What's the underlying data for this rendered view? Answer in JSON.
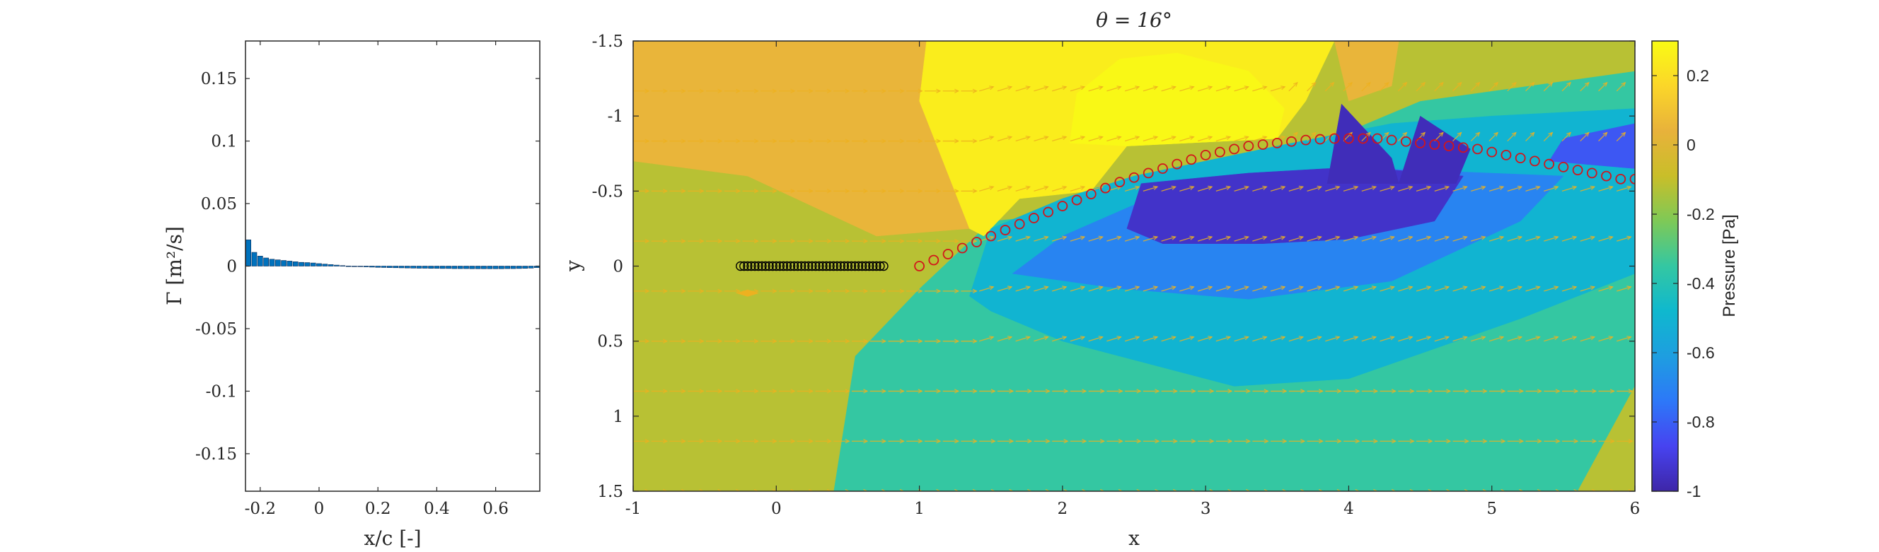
{
  "chart_data": [
    {
      "type": "bar",
      "xlabel": "x/c [-]",
      "ylabel": "Γ [m²/s]",
      "xlim": [
        -0.25,
        0.75
      ],
      "ylim": [
        -0.18,
        0.18
      ],
      "xticks": [
        "-0.2",
        "0",
        "0.2",
        "0.4",
        "0.6"
      ],
      "xtick_values": [
        -0.2,
        0,
        0.2,
        0.4,
        0.6
      ],
      "yticks": [
        "0.15",
        "0.1",
        "0.05",
        "0",
        "-0.05",
        "-0.1",
        "-0.15"
      ],
      "ytick_values": [
        0.15,
        0.1,
        0.05,
        0,
        -0.05,
        -0.1,
        -0.15
      ],
      "bar_color": "#0072BD",
      "x": [
        -0.24,
        -0.22,
        -0.2,
        -0.18,
        -0.16,
        -0.14,
        -0.12,
        -0.1,
        -0.08,
        -0.06,
        -0.04,
        -0.02,
        0,
        0.02,
        0.04,
        0.06,
        0.08,
        0.1,
        0.12,
        0.14,
        0.16,
        0.18,
        0.2,
        0.22,
        0.24,
        0.26,
        0.28,
        0.3,
        0.32,
        0.34,
        0.36,
        0.38,
        0.4,
        0.42,
        0.44,
        0.46,
        0.48,
        0.5,
        0.52,
        0.54,
        0.56,
        0.58,
        0.6,
        0.62,
        0.64,
        0.66,
        0.68,
        0.7,
        0.72,
        0.74
      ],
      "values": [
        0.021,
        0.011,
        0.008,
        0.0065,
        0.0055,
        0.005,
        0.0045,
        0.004,
        0.0035,
        0.003,
        0.0028,
        0.0025,
        0.002,
        0.0016,
        0.0012,
        0.0008,
        0.0004,
        0.0001,
        -0.0002,
        -0.0004,
        -0.0006,
        -0.0008,
        -0.001,
        -0.0011,
        -0.0012,
        -0.0013,
        -0.0014,
        -0.0015,
        -0.0016,
        -0.0017,
        -0.0017,
        -0.0018,
        -0.0018,
        -0.0019,
        -0.0019,
        -0.002,
        -0.002,
        -0.002,
        -0.0021,
        -0.0021,
        -0.0021,
        -0.0021,
        -0.0021,
        -0.0021,
        -0.002,
        -0.002,
        -0.0019,
        -0.0018,
        -0.0016,
        -0.0012
      ]
    },
    {
      "type": "heatmap",
      "title": "θ = 16°",
      "xlabel": "x",
      "ylabel": "y",
      "xlim": [
        -1,
        6
      ],
      "ylim": [
        -1.5,
        1.5
      ],
      "y_reversed": true,
      "xticks": [
        "-1",
        "0",
        "1",
        "2",
        "3",
        "4",
        "5",
        "6"
      ],
      "xtick_values": [
        -1,
        0,
        1,
        2,
        3,
        4,
        5,
        6
      ],
      "yticks": [
        "-1.5",
        "-1",
        "-0.5",
        "0",
        "0.5",
        "1",
        "1.5"
      ],
      "ytick_values": [
        -1.5,
        -1,
        -0.5,
        0,
        0.5,
        1,
        1.5
      ],
      "colorbar": {
        "label": "Pressure [Pa]",
        "range": [
          -1,
          0.3
        ],
        "ticks": [
          "0.2",
          "0",
          "-0.2",
          "-0.4",
          "-0.6",
          "-0.8",
          "-1"
        ],
        "tick_values": [
          0.2,
          0,
          -0.2,
          -0.4,
          -0.6,
          -0.8,
          -1
        ],
        "colormap": [
          "#3e26a8",
          "#4743f0",
          "#2d78f8",
          "#1e9ee0",
          "#0fb8ce",
          "#34c7a2",
          "#7ec957",
          "#c9be29",
          "#e8b23b",
          "#fbd629",
          "#f9fb14"
        ]
      },
      "pressure_regions": [
        {
          "level": -0.35,
          "polygon": [
            [
              -1,
              1.5
            ],
            [
              6,
              1.5
            ],
            [
              6,
              -1.5
            ],
            [
              -1,
              -1.5
            ]
          ]
        },
        {
          "level": -0.12,
          "polygon": [
            [
              -1,
              1.5
            ],
            [
              0.4,
              1.5
            ],
            [
              0.55,
              0.6
            ],
            [
              1.0,
              0.15
            ],
            [
              1.5,
              -0.3
            ],
            [
              2.5,
              -0.4
            ],
            [
              3.5,
              -0.7
            ],
            [
              4.5,
              -1.1
            ],
            [
              6,
              -1.3
            ],
            [
              6,
              -1.5
            ],
            [
              -1,
              -1.5
            ]
          ]
        },
        {
          "level": -0.12,
          "polygon": [
            [
              5.6,
              1.5
            ],
            [
              6,
              0.8
            ],
            [
              6,
              1.5
            ]
          ]
        },
        {
          "level": 0.05,
          "polygon": [
            [
              -1,
              -0.7
            ],
            [
              -0.2,
              -0.6
            ],
            [
              0.7,
              -0.2
            ],
            [
              1.35,
              -0.25
            ],
            [
              1.0,
              -1.1
            ],
            [
              1.05,
              -1.5
            ],
            [
              -1,
              -1.5
            ]
          ]
        },
        {
          "level": 0.05,
          "polygon": [
            [
              3.9,
              -1.5
            ],
            [
              4.35,
              -1.5
            ],
            [
              4.3,
              -1.2
            ],
            [
              4.0,
              -1.1
            ]
          ]
        },
        {
          "level": 0.25,
          "polygon": [
            [
              1.05,
              -1.5
            ],
            [
              3.9,
              -1.5
            ],
            [
              3.7,
              -1.1
            ],
            [
              3.5,
              -0.85
            ],
            [
              2.45,
              -0.8
            ],
            [
              2.2,
              -0.5
            ],
            [
              1.7,
              -0.45
            ],
            [
              1.45,
              -0.2
            ],
            [
              1.35,
              -0.25
            ],
            [
              1.0,
              -1.1
            ]
          ]
        },
        {
          "level": 0.29,
          "polygon": [
            [
              2.05,
              -0.82
            ],
            [
              2.1,
              -1.15
            ],
            [
              2.4,
              -1.38
            ],
            [
              2.8,
              -1.42
            ],
            [
              3.3,
              -1.3
            ],
            [
              3.55,
              -1.05
            ],
            [
              3.5,
              -0.85
            ],
            [
              2.45,
              -0.8
            ]
          ]
        },
        {
          "level": -0.5,
          "polygon": [
            [
              1.35,
              0.2
            ],
            [
              1.5,
              -0.25
            ],
            [
              2.0,
              -0.45
            ],
            [
              2.5,
              -0.6
            ],
            [
              3.5,
              -0.8
            ],
            [
              4.3,
              -0.95
            ],
            [
              5.0,
              -1.0
            ],
            [
              6,
              -1.05
            ],
            [
              6,
              0.05
            ],
            [
              5.2,
              0.35
            ],
            [
              4.0,
              0.75
            ],
            [
              3.2,
              0.8
            ],
            [
              2.0,
              0.5
            ],
            [
              1.5,
              0.3
            ]
          ]
        },
        {
          "level": -0.7,
          "polygon": [
            [
              1.65,
              0.05
            ],
            [
              2.0,
              -0.2
            ],
            [
              2.6,
              -0.45
            ],
            [
              3.3,
              -0.55
            ],
            [
              4.2,
              -0.65
            ],
            [
              5.5,
              -0.6
            ],
            [
              5.2,
              -0.3
            ],
            [
              4.3,
              0.1
            ],
            [
              3.3,
              0.22
            ],
            [
              2.4,
              0.15
            ]
          ]
        },
        {
          "level": -0.82,
          "polygon": [
            [
              5.5,
              -0.85
            ],
            [
              6,
              -0.95
            ],
            [
              6,
              -0.65
            ],
            [
              5.4,
              -0.7
            ]
          ]
        },
        {
          "level": -0.94,
          "polygon": [
            [
              2.45,
              -0.25
            ],
            [
              2.55,
              -0.55
            ],
            [
              3.3,
              -0.62
            ],
            [
              3.85,
              -0.65
            ],
            [
              4.2,
              -0.65
            ],
            [
              4.8,
              -0.6
            ],
            [
              4.6,
              -0.3
            ],
            [
              4.0,
              -0.18
            ],
            [
              3.4,
              -0.15
            ],
            [
              2.7,
              -0.15
            ]
          ]
        },
        {
          "level": -0.97,
          "polygon": [
            [
              3.85,
              -0.55
            ],
            [
              3.95,
              -1.08
            ],
            [
              4.3,
              -0.72
            ],
            [
              4.35,
              -0.55
            ]
          ]
        },
        {
          "level": -0.97,
          "polygon": [
            [
              4.35,
              -0.55
            ],
            [
              4.5,
              -1.0
            ],
            [
              4.85,
              -0.78
            ],
            [
              4.75,
              -0.55
            ]
          ]
        }
      ],
      "flat_plate_x": [
        -0.25,
        -0.225,
        -0.2,
        -0.175,
        -0.15,
        -0.125,
        -0.1,
        -0.075,
        -0.05,
        -0.025,
        0,
        0.025,
        0.05,
        0.075,
        0.1,
        0.125,
        0.15,
        0.175,
        0.2,
        0.225,
        0.25,
        0.275,
        0.3,
        0.325,
        0.35,
        0.375,
        0.4,
        0.425,
        0.45,
        0.475,
        0.5,
        0.525,
        0.55,
        0.575,
        0.6,
        0.625,
        0.65,
        0.675,
        0.7,
        0.725,
        0.75
      ],
      "flat_plate_y": 0,
      "wake_x": [
        1.0,
        1.1,
        1.2,
        1.3,
        1.4,
        1.5,
        1.6,
        1.7,
        1.8,
        1.9,
        2.0,
        2.1,
        2.2,
        2.3,
        2.4,
        2.5,
        2.6,
        2.7,
        2.8,
        2.9,
        3.0,
        3.1,
        3.2,
        3.3,
        3.4,
        3.5,
        3.6,
        3.7,
        3.8,
        3.9,
        4.0,
        4.1,
        4.2,
        4.3,
        4.4,
        4.5,
        4.6,
        4.7,
        4.8,
        4.9,
        5.0,
        5.1,
        5.2,
        5.3,
        5.4,
        5.5,
        5.6,
        5.7,
        5.8,
        5.9,
        6.0
      ],
      "wake_y": [
        0.0,
        -0.04,
        -0.08,
        -0.12,
        -0.16,
        -0.2,
        -0.24,
        -0.28,
        -0.32,
        -0.36,
        -0.4,
        -0.44,
        -0.48,
        -0.52,
        -0.56,
        -0.59,
        -0.62,
        -0.65,
        -0.68,
        -0.71,
        -0.74,
        -0.76,
        -0.78,
        -0.8,
        -0.81,
        -0.82,
        -0.83,
        -0.84,
        -0.845,
        -0.85,
        -0.85,
        -0.85,
        -0.85,
        -0.84,
        -0.83,
        -0.82,
        -0.81,
        -0.8,
        -0.79,
        -0.78,
        -0.76,
        -0.74,
        -0.72,
        -0.7,
        -0.68,
        -0.66,
        -0.64,
        -0.62,
        -0.6,
        -0.58,
        -0.58
      ],
      "vector_color": "#EDB120",
      "wake_marker_color": "#D2151B",
      "plate_marker_color": "#000000"
    }
  ]
}
